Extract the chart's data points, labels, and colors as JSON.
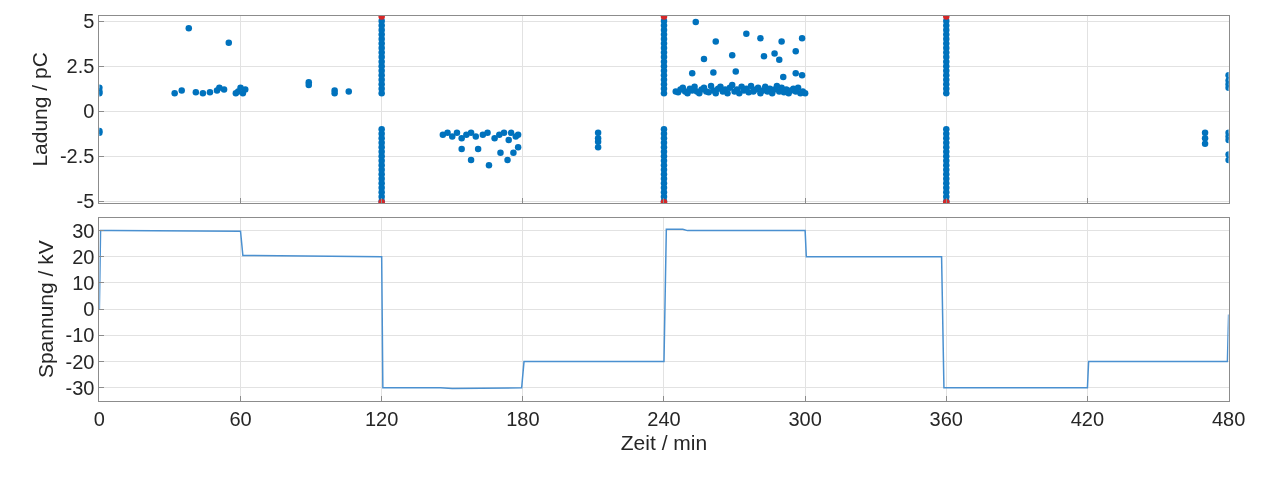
{
  "chart_data": [
    {
      "type": "scatter",
      "ylabel": "Ladung / pC",
      "xlim": [
        0,
        480
      ],
      "xticks": [
        0,
        60,
        120,
        180,
        240,
        300,
        360,
        420,
        480
      ],
      "ylim": [
        -5.1,
        5.3
      ],
      "yticks": [
        -5,
        -2.5,
        0,
        2.5,
        5
      ],
      "grid": true,
      "tick_labels": "y",
      "marker": "circle",
      "series": [
        {
          "color": "#0072bd",
          "x": [
            0,
            0,
            0,
            0,
            0,
            32,
            35,
            38,
            41,
            44,
            47,
            50,
            51,
            53,
            55,
            58,
            59,
            60,
            61,
            62,
            89,
            89,
            100,
            100,
            106,
            120,
            120,
            120,
            120,
            120,
            120,
            120,
            120,
            120,
            120,
            120,
            120,
            120,
            120,
            120,
            120,
            120,
            120,
            120,
            120,
            120,
            120,
            120,
            120,
            120,
            120,
            120,
            120,
            120,
            120,
            120,
            120,
            120,
            120,
            146,
            148,
            150,
            152,
            154,
            154,
            156,
            158,
            158,
            160,
            161,
            163,
            165,
            165.6,
            168,
            170,
            170.5,
            172,
            173.5,
            174,
            175,
            176,
            177,
            178,
            178,
            212,
            212,
            212,
            212,
            240,
            240,
            240,
            240,
            240,
            240,
            240,
            240,
            240,
            240,
            240,
            240,
            240,
            240,
            240,
            240,
            240,
            240,
            240,
            240,
            240,
            240,
            240,
            240,
            240,
            240,
            240,
            240,
            240,
            240,
            240,
            240,
            240,
            240,
            252,
            253.5,
            257,
            261,
            262,
            269,
            270.5,
            275,
            281,
            282.5,
            287,
            289,
            290,
            290.7,
            296,
            296,
            298.7,
            298.7,
            245,
            246,
            247,
            248,
            249,
            250,
            251,
            252,
            253,
            254,
            255,
            256,
            257,
            258,
            259,
            260,
            261,
            262,
            263,
            264,
            265,
            266,
            267,
            268,
            269,
            270,
            271,
            272,
            273,
            274,
            275,
            276,
            277,
            278,
            279,
            280,
            281,
            282,
            283,
            284,
            285,
            286,
            287,
            288,
            289,
            290,
            291,
            292,
            293,
            294,
            295,
            296,
            297,
            298,
            299,
            300,
            360,
            360,
            360,
            360,
            360,
            360,
            360,
            360,
            360,
            360,
            360,
            360,
            360,
            360,
            360,
            360,
            360,
            360,
            360,
            360,
            360,
            360,
            360,
            360,
            360,
            360,
            360,
            360,
            360,
            360,
            360,
            360,
            360,
            360,
            470,
            470,
            470,
            480,
            480,
            480,
            480,
            480,
            480,
            480,
            480,
            480
          ],
          "values": [
            1.3,
            1.0,
            1.1,
            -1.1,
            -1.2,
            1.0,
            1.15,
            4.6,
            1.05,
            1.0,
            1.05,
            1.15,
            1.3,
            1.2,
            3.8,
            1.0,
            1.1,
            1.3,
            1.0,
            1.2,
            1.6,
            1.45,
            1.15,
            1.0,
            1.1,
            1.0,
            1.25,
            1.5,
            1.75,
            2.0,
            2.25,
            2.5,
            2.75,
            3.0,
            3.25,
            3.5,
            3.75,
            4.0,
            4.25,
            4.5,
            4.75,
            5.0,
            -1.0,
            -1.25,
            -1.5,
            -1.75,
            -2.0,
            -2.25,
            -2.5,
            -2.75,
            -3.0,
            -3.25,
            -3.5,
            -3.75,
            -4.0,
            -4.25,
            -4.5,
            -4.75,
            -5.0,
            -1.3,
            -1.2,
            -1.4,
            -1.2,
            -1.5,
            -2.1,
            -1.3,
            -1.2,
            -2.7,
            -1.4,
            -2.1,
            -1.3,
            -1.2,
            -3.0,
            -1.5,
            -1.3,
            -2.3,
            -1.2,
            -2.7,
            -1.6,
            -1.2,
            -2.3,
            -1.4,
            -1.3,
            -2.0,
            -1.2,
            -1.5,
            -1.7,
            -2.0,
            1.0,
            1.25,
            1.5,
            1.75,
            2.0,
            2.25,
            2.5,
            2.75,
            3.0,
            3.25,
            3.5,
            3.75,
            4.0,
            4.25,
            4.5,
            4.75,
            5.0,
            -1.0,
            -1.25,
            -1.5,
            -1.75,
            -2.0,
            -2.25,
            -2.5,
            -2.75,
            -3.0,
            -3.25,
            -3.5,
            -3.75,
            -4.0,
            -4.25,
            -4.5,
            -4.75,
            -5.0,
            2.1,
            4.95,
            2.9,
            2.15,
            3.87,
            3.1,
            2.2,
            4.3,
            4.05,
            3.05,
            3.2,
            2.85,
            3.87,
            1.9,
            3.33,
            2.1,
            4.05,
            2.0,
            1.1,
            1.05,
            1.2,
            1.3,
            1.1,
            1.0,
            1.25,
            1.15,
            1.35,
            1.1,
            1.0,
            1.2,
            1.3,
            1.1,
            1.05,
            1.4,
            1.15,
            1.0,
            1.25,
            1.35,
            1.1,
            1.2,
            1.0,
            1.3,
            1.45,
            1.1,
            1.2,
            1.0,
            1.35,
            1.15,
            1.25,
            1.05,
            1.4,
            1.1,
            1.2,
            1.3,
            1.0,
            1.15,
            1.35,
            1.1,
            1.25,
            1.0,
            1.2,
            1.4,
            1.1,
            1.3,
            1.05,
            1.2,
            1.0,
            1.15,
            1.25,
            1.1,
            1.3,
            1.0,
            1.1,
            1.0,
            1.0,
            1.25,
            1.5,
            1.75,
            2.0,
            2.25,
            2.5,
            2.75,
            3.0,
            3.25,
            3.5,
            3.75,
            4.0,
            4.25,
            4.5,
            4.75,
            5.0,
            -1.0,
            -1.25,
            -1.5,
            -1.75,
            -2.0,
            -2.25,
            -2.5,
            -2.75,
            -3.0,
            -3.25,
            -3.5,
            -3.75,
            -4.0,
            -4.25,
            -4.5,
            -4.75,
            -5.0,
            -1.2,
            -1.5,
            -1.8,
            2.0,
            1.7,
            1.5,
            1.3,
            -1.2,
            -1.4,
            -1.6,
            -2.4,
            -2.7
          ]
        },
        {
          "color": "#d62728",
          "x": [
            120,
            120,
            240,
            240,
            360,
            360
          ],
          "values": [
            5.25,
            -5.05,
            5.25,
            -5.05,
            5.25,
            -5.05
          ]
        }
      ]
    },
    {
      "type": "line",
      "xlabel": "Zeit / min",
      "ylabel": "Spannung / kV",
      "xlim": [
        0,
        480
      ],
      "xticks": [
        0,
        60,
        120,
        180,
        240,
        300,
        360,
        420,
        480
      ],
      "ylim": [
        -35,
        35
      ],
      "yticks": [
        -30,
        -20,
        -10,
        0,
        10,
        20,
        30
      ],
      "grid": true,
      "marker": "none",
      "line_style": "solid",
      "series": [
        {
          "color": "#4a90d0",
          "x": [
            0,
            0.5,
            5,
            60,
            61,
            120,
            120.5,
            145,
            150,
            179.5,
            180.5,
            240,
            241,
            248,
            250,
            300,
            300.5,
            358,
            359,
            420,
            420.5,
            479.5,
            480
          ],
          "values": [
            0,
            30,
            30,
            29.8,
            20.5,
            20,
            -30,
            -30,
            -30.3,
            -30,
            -20,
            -20,
            30.5,
            30.5,
            30,
            30,
            20,
            20,
            -30,
            -30,
            -20,
            -20,
            -2
          ]
        }
      ]
    }
  ]
}
